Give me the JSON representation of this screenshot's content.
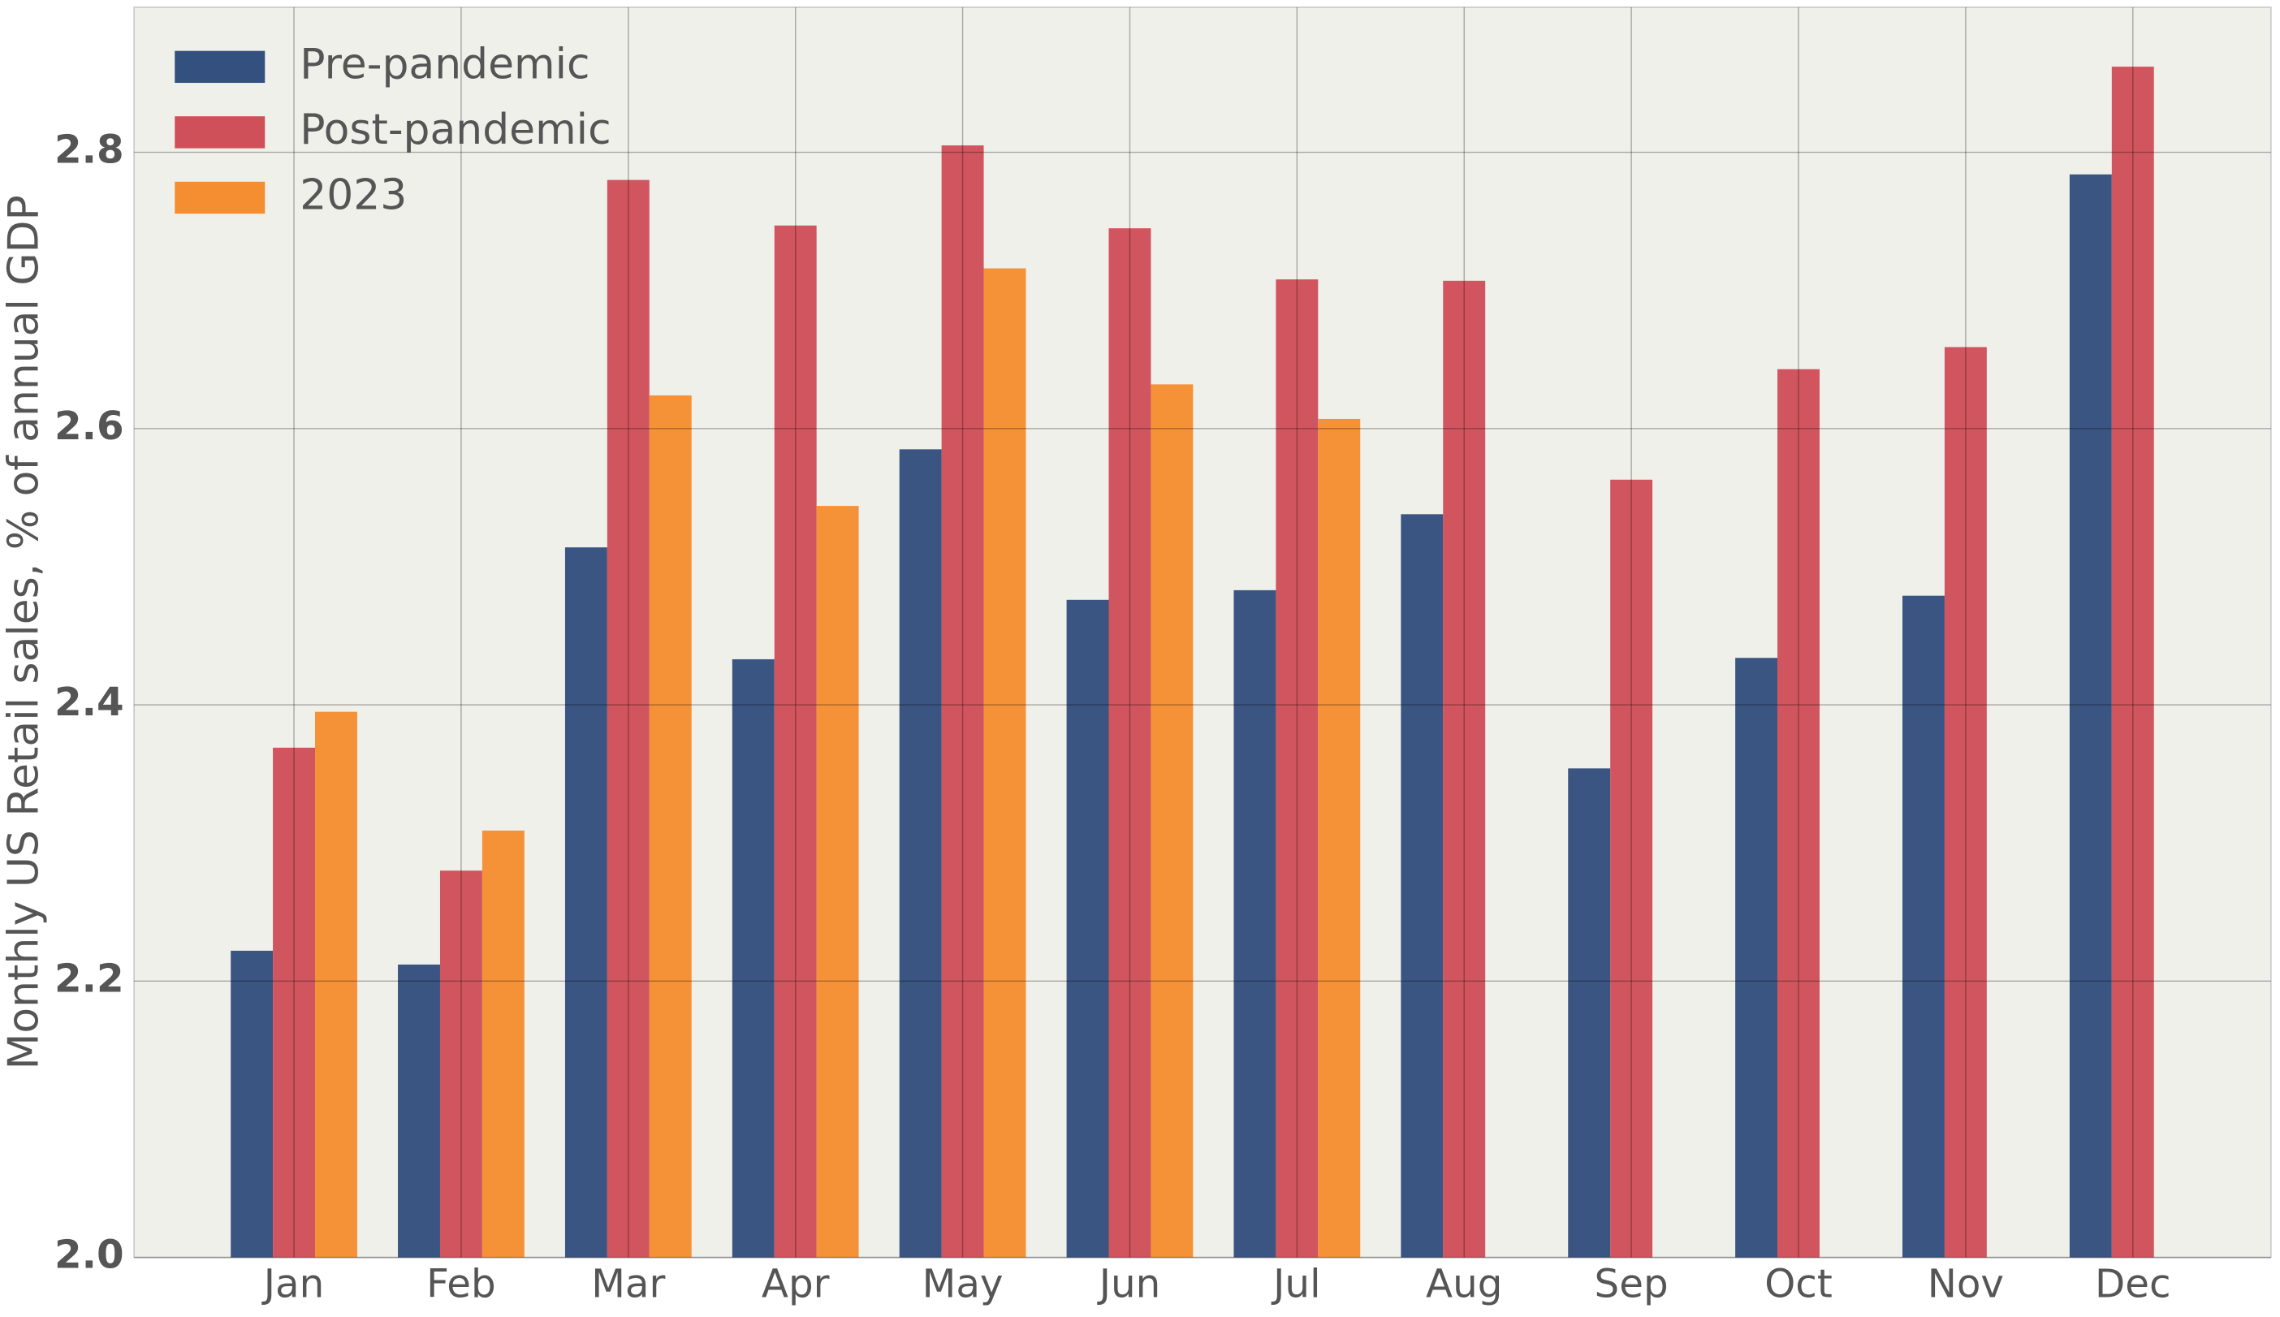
{
  "chart_data": {
    "type": "bar",
    "y_label": "Monthly US Retail sales, % of annual GDP",
    "categories": [
      "Jan",
      "Feb",
      "Mar",
      "Apr",
      "May",
      "Jun",
      "Jul",
      "Aug",
      "Sep",
      "Oct",
      "Nov",
      "Dec"
    ],
    "series": [
      {
        "name": "Pre-pandemic",
        "color": "#34507e",
        "values": [
          2.222,
          2.212,
          2.514,
          2.433,
          2.585,
          2.476,
          2.483,
          2.538,
          2.354,
          2.434,
          2.479,
          2.784
        ]
      },
      {
        "name": "Post-pandemic",
        "color": "#cf5059",
        "values": [
          2.369,
          2.28,
          2.78,
          2.747,
          2.805,
          2.745,
          2.708,
          2.707,
          2.563,
          2.643,
          2.659,
          2.862
        ]
      },
      {
        "name": "2023",
        "color": "#f58d31",
        "values": [
          2.395,
          2.309,
          2.624,
          2.544,
          2.716,
          2.632,
          2.607,
          null,
          null,
          null,
          null,
          null
        ]
      }
    ],
    "ylim": [
      2.0,
      2.905
    ],
    "yticks": [
      {
        "value": 2,
        "label": "2.0"
      },
      2.2,
      2.4,
      2.6,
      2.8
    ],
    "grid": true,
    "legend": "upper-left"
  }
}
